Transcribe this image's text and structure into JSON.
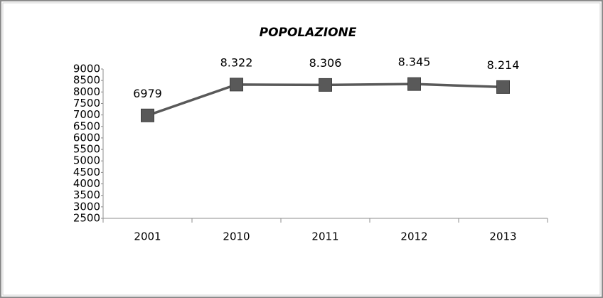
{
  "chart_data": {
    "type": "line",
    "title": "POPOLAZIONE",
    "categories": [
      "2001",
      "2010",
      "2011",
      "2012",
      "2013"
    ],
    "values": [
      6979,
      8322,
      8306,
      8345,
      8214
    ],
    "value_labels": [
      "6979",
      "8.322",
      "8.306",
      "8.345",
      "8.214"
    ],
    "color": "#595959",
    "ylim": [
      2500,
      9000
    ],
    "yticks": [
      2500,
      3000,
      3500,
      4000,
      4500,
      5000,
      5500,
      6000,
      6500,
      7000,
      7500,
      8000,
      8500,
      9000
    ]
  }
}
